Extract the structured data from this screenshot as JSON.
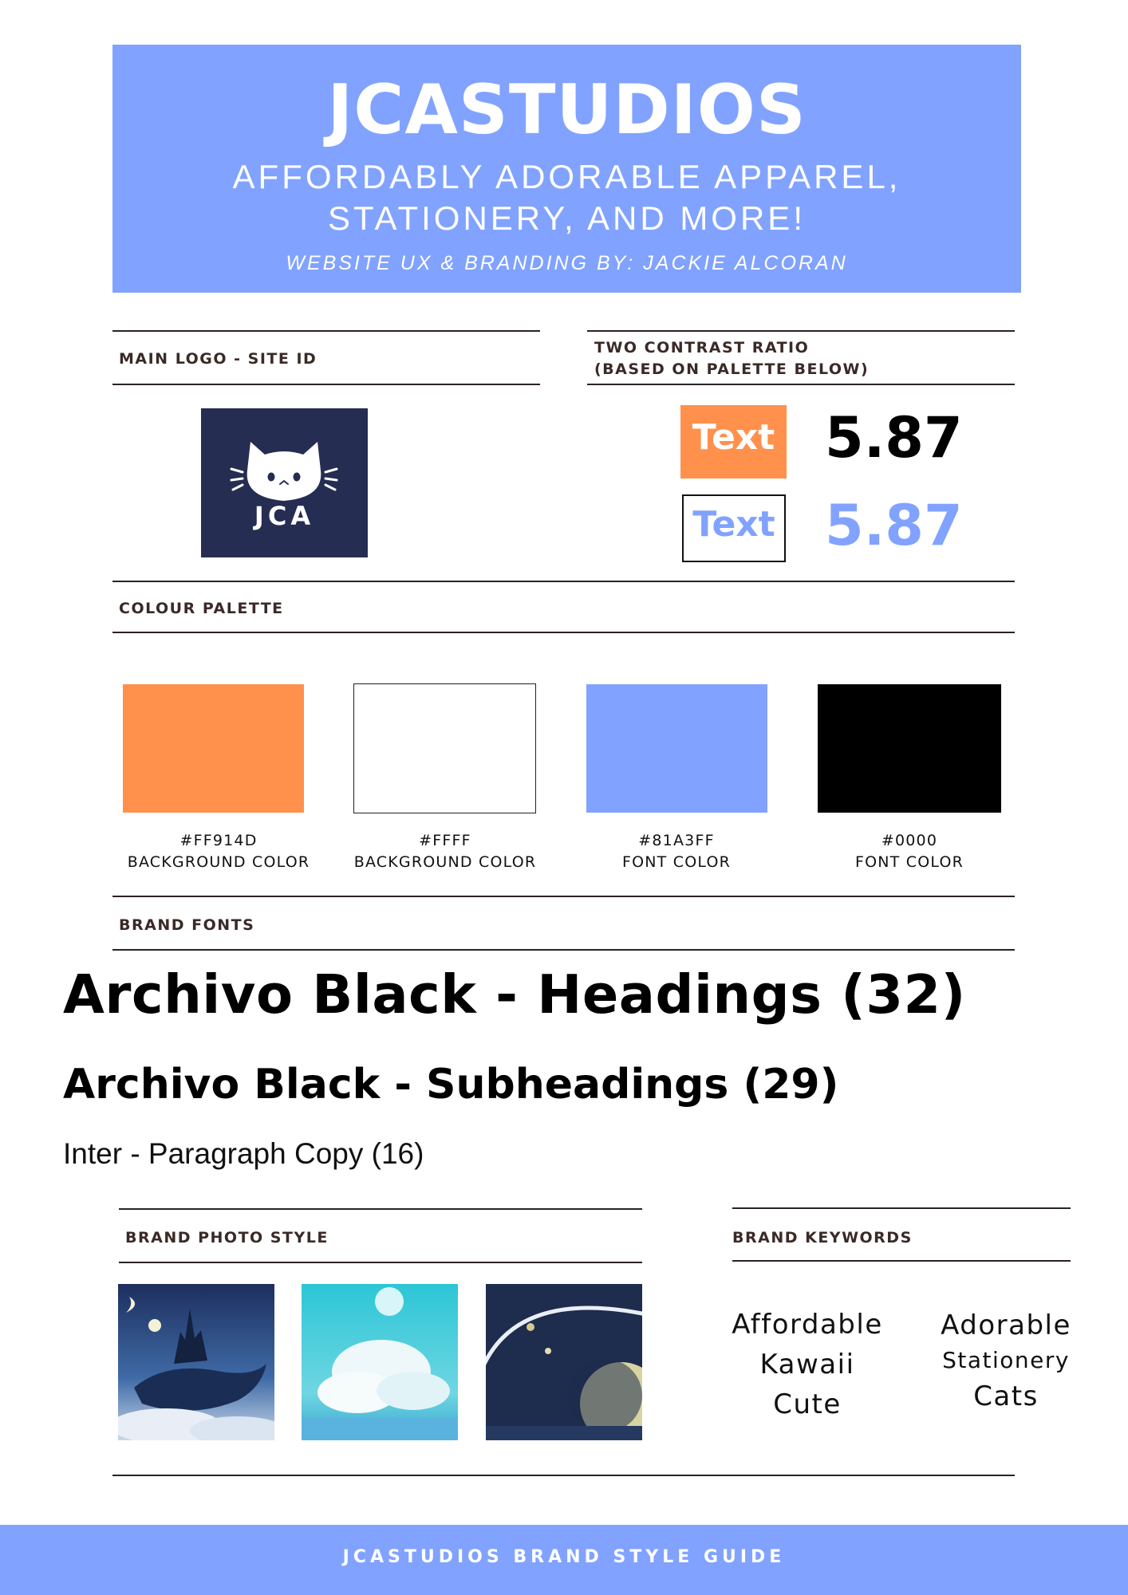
{
  "header": {
    "title": "JCASTUDIOS",
    "subtitle_line1": "AFFORDABLY ADORABLE APPAREL,",
    "subtitle_line2": "STATIONERY, AND MORE!",
    "credit": "WEBSITE UX & BRANDING BY: JACKIE ALCORAN",
    "bg_color": "#81A3FF"
  },
  "logo_section": {
    "label": "MAIN LOGO - SITE ID",
    "logo_text": "JCA",
    "logo_bg": "#262D52"
  },
  "contrast_section": {
    "label_line1": "TWO CONTRAST RATIO",
    "label_line2": "(BASED ON PALETTE BELOW)",
    "samples": [
      {
        "text": "Text",
        "ratio": "5.87",
        "text_color": "#FFFFFF",
        "bg_color": "#FF914D",
        "ratio_color": "#000000"
      },
      {
        "text": "Text",
        "ratio": "5.87",
        "text_color": "#81A3FF",
        "bg_color": "#FFFFFF",
        "ratio_color": "#81A3FF"
      }
    ]
  },
  "palette_section": {
    "label": "COLOUR PALETTE",
    "swatches": [
      {
        "color": "#FF914D",
        "code": "#FF914D",
        "usage": "BACKGROUND COLOR"
      },
      {
        "color": "#FFFFFF",
        "code": "#FFFF",
        "usage": "BACKGROUND COLOR"
      },
      {
        "color": "#81A3FF",
        "code": "#81A3FF",
        "usage": "FONT COLOR"
      },
      {
        "color": "#000000",
        "code": "#0000",
        "usage": "FONT COLOR"
      }
    ]
  },
  "fonts_section": {
    "label": "BRAND FONTS",
    "heading_sample": "Archivo Black - Headings (32)",
    "subheading_sample": "Archivo Black - Subheadings (29)",
    "paragraph_sample": "Inter - Paragraph Copy (16)"
  },
  "photo_section": {
    "label": "BRAND PHOTO STYLE",
    "photos": [
      "whale-castle-photo",
      "clouds-sky-photo",
      "planet-ring-photo"
    ]
  },
  "keywords_section": {
    "label": "BRAND KEYWORDS",
    "column1": [
      "Affordable",
      "Kawaii",
      "Cute"
    ],
    "column2": [
      "Adorable",
      "Stationery",
      "Cats"
    ]
  },
  "footer": {
    "text": "JCASTUDIOS BRAND STYLE GUIDE"
  }
}
